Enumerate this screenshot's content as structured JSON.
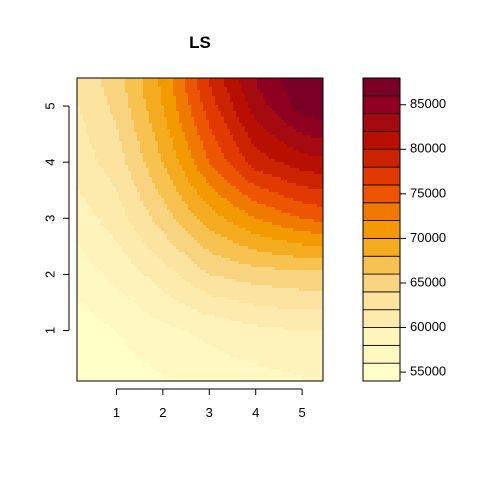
{
  "chart_data": {
    "type": "heatmap",
    "style": "filled-contour",
    "title": "LS",
    "xlabel": "",
    "ylabel": "",
    "xlim": [
      0.15,
      5.45
    ],
    "ylim": [
      0.1,
      5.5
    ],
    "x_ticks": [
      1,
      2,
      3,
      4,
      5
    ],
    "y_ticks": [
      1,
      2,
      3,
      4,
      5
    ],
    "x_tick_labels": [
      "1",
      "2",
      "3",
      "4",
      "5"
    ],
    "y_tick_labels": [
      "1",
      "2",
      "3",
      "4",
      "5"
    ],
    "colorbar": {
      "range": [
        54000,
        88000
      ],
      "level_step": 2000,
      "ticks": [
        55000,
        60000,
        65000,
        70000,
        75000,
        80000,
        85000
      ],
      "tick_labels": [
        "55000",
        "60000",
        "65000",
        "70000",
        "75000",
        "80000",
        "85000"
      ],
      "colors": [
        "#FFFFC8",
        "#FFF8C0",
        "#FEF3BB",
        "#FDEBAE",
        "#FCE3A0",
        "#F9D480",
        "#F7C250",
        "#F5AB20",
        "#F39A00",
        "#F07A00",
        "#EE5500",
        "#E03A00",
        "#CB2200",
        "#B81000",
        "#A50A10",
        "#8F0020",
        "#7A0026"
      ]
    },
    "z_grid": {
      "x": [
        0.2,
        1,
        2,
        3,
        4,
        5,
        5.4
      ],
      "y": [
        0.2,
        1,
        2,
        3,
        4,
        5,
        5.4
      ],
      "z": [
        [
          54200,
          55000,
          56000,
          57000,
          57500,
          58000,
          58200
        ],
        [
          55000,
          56000,
          57500,
          58500,
          59500,
          60000,
          60000
        ],
        [
          57000,
          58500,
          61000,
          64000,
          65000,
          65500,
          65500
        ],
        [
          59000,
          61000,
          65000,
          69000,
          72000,
          74000,
          74500
        ],
        [
          61000,
          63000,
          68000,
          74000,
          79000,
          81000,
          81500
        ],
        [
          62000,
          64500,
          70000,
          77000,
          83000,
          87000,
          87500
        ],
        [
          62500,
          65000,
          70500,
          78000,
          84000,
          87500,
          88000
        ]
      ]
    }
  }
}
